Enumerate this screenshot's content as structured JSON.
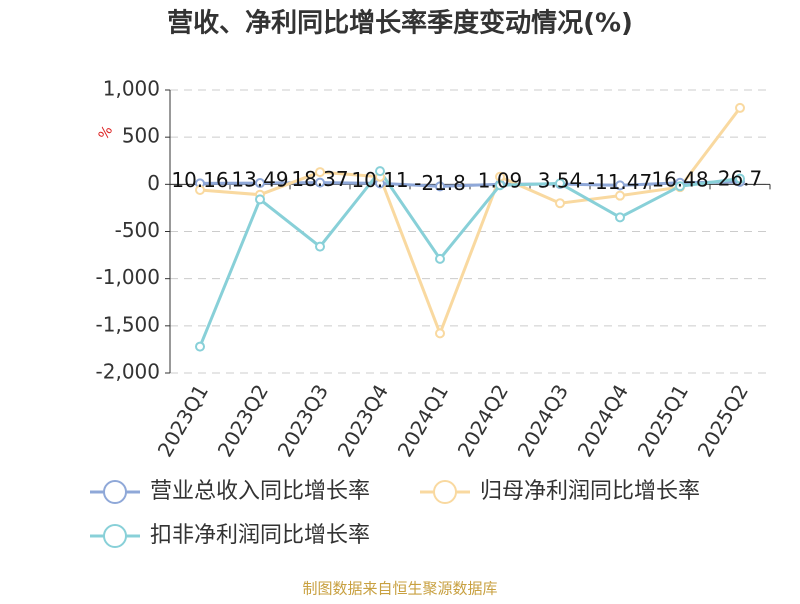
{
  "chart_data": {
    "type": "line",
    "title": "营收、净利同比增长率季度变动情况(%)",
    "y_label": "%",
    "categories": [
      "2023Q1",
      "2023Q2",
      "2023Q3",
      "2023Q4",
      "2024Q1",
      "2024Q2",
      "2024Q3",
      "2024Q4",
      "2025Q1",
      "2025Q2"
    ],
    "series": [
      {
        "name": "营业总收入同比增长率",
        "color": "#8fa8d8",
        "values": [
          10.16,
          13.49,
          18.37,
          10.11,
          -21.8,
          1.09,
          3.54,
          -11.47,
          16.48,
          26.7
        ]
      },
      {
        "name": "归母净利润同比增长率",
        "color": "#f9d9a0",
        "values": [
          -60,
          -110,
          130,
          80,
          -1580,
          80,
          -200,
          -120,
          -30,
          810
        ]
      },
      {
        "name": "扣非净利润同比增长率",
        "color": "#88d0d8",
        "values": [
          -1720,
          -160,
          -660,
          140,
          -790,
          -10,
          10,
          -350,
          -20,
          60
        ]
      }
    ],
    "ylim": [
      -2000,
      1000
    ],
    "yticks": [
      {
        "value": -2000,
        "label": "-2,000"
      },
      {
        "value": -1500,
        "label": "-1,500"
      },
      {
        "value": -1000,
        "label": "-1,000"
      },
      -500,
      0,
      500,
      {
        "value": 1000,
        "label": "1,000"
      }
    ],
    "grid": true,
    "source": "制图数据来自恒生聚源数据库"
  }
}
